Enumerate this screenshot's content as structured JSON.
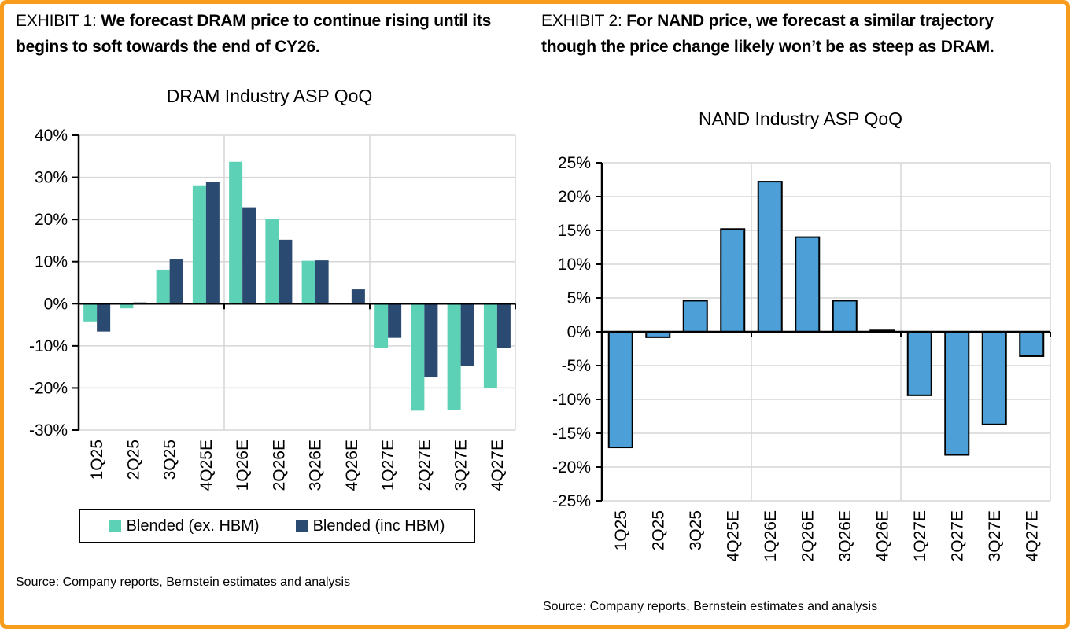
{
  "frame": {
    "border_color": "#F79C1D",
    "background": "#FFFFFF"
  },
  "exhibits": [
    {
      "label": "EXHIBIT 1:",
      "heading": "We forecast DRAM price to continue rising until its begins to soft towards the end of CY26.",
      "source": "Source: Company reports, Bernstein estimates and analysis"
    },
    {
      "label": "EXHIBIT 2:",
      "heading": "For NAND price, we forecast a similar trajectory though the price change likely won’t be as steep as DRAM.",
      "source": "Source: Company reports, Bernstein estimates and analysis"
    }
  ],
  "chart_data": [
    {
      "type": "bar",
      "title": "DRAM Industry ASP QoQ",
      "categories": [
        "1Q25",
        "2Q25",
        "3Q25",
        "4Q25E",
        "1Q26E",
        "2Q26E",
        "3Q26E",
        "4Q26E",
        "1Q27E",
        "2Q27E",
        "3Q27E",
        "4Q27E"
      ],
      "series": [
        {
          "name": "Blended (ex. HBM)",
          "color": "#5CD1B5",
          "values": [
            -4.2,
            -1.1,
            8.1,
            28.1,
            33.7,
            20.1,
            10.2,
            0,
            -10.4,
            -25.4,
            -25.2,
            -20.1
          ]
        },
        {
          "name": "Blended (inc HBM)",
          "color": "#2B4A72",
          "values": [
            -6.6,
            0.3,
            10.5,
            28.8,
            22.9,
            15.2,
            10.3,
            3.4,
            -8.1,
            -17.5,
            -14.8,
            -10.4
          ]
        }
      ],
      "ylim": [
        -30,
        40
      ],
      "ytick_step": 10,
      "ytick_labels": [
        "40%",
        "30%",
        "20%",
        "10%",
        "0%",
        "-10%",
        "-20%",
        "-30%"
      ],
      "grid": true,
      "gridline_color": "#D6D6D6",
      "year_boundaries_after": [
        3,
        7
      ],
      "legend_position": "bottom",
      "xlabel": "",
      "ylabel": ""
    },
    {
      "type": "bar",
      "title": "NAND Industry ASP QoQ",
      "categories": [
        "1Q25",
        "2Q25",
        "3Q25",
        "4Q25E",
        "1Q26E",
        "2Q26E",
        "3Q26E",
        "4Q26E",
        "1Q27E",
        "2Q27E",
        "3Q27E",
        "4Q27E"
      ],
      "series": [
        {
          "name": "NAND Industry ASP QoQ",
          "color": "#4C9FD7",
          "outline": "#000000",
          "values": [
            -17.1,
            -0.8,
            4.6,
            15.2,
            22.2,
            14.0,
            4.6,
            0.2,
            -9.4,
            -18.2,
            -13.7,
            -3.6
          ]
        }
      ],
      "ylim": [
        -25,
        25
      ],
      "ytick_step": 5,
      "ytick_labels": [
        "25%",
        "20%",
        "15%",
        "10%",
        "5%",
        "0%",
        "-5%",
        "-10%",
        "-15%",
        "-20%",
        "-25%"
      ],
      "grid": true,
      "gridline_color": "#D6D6D6",
      "year_boundaries_after": [
        3,
        7
      ],
      "legend_position": "none",
      "xlabel": "",
      "ylabel": ""
    }
  ]
}
